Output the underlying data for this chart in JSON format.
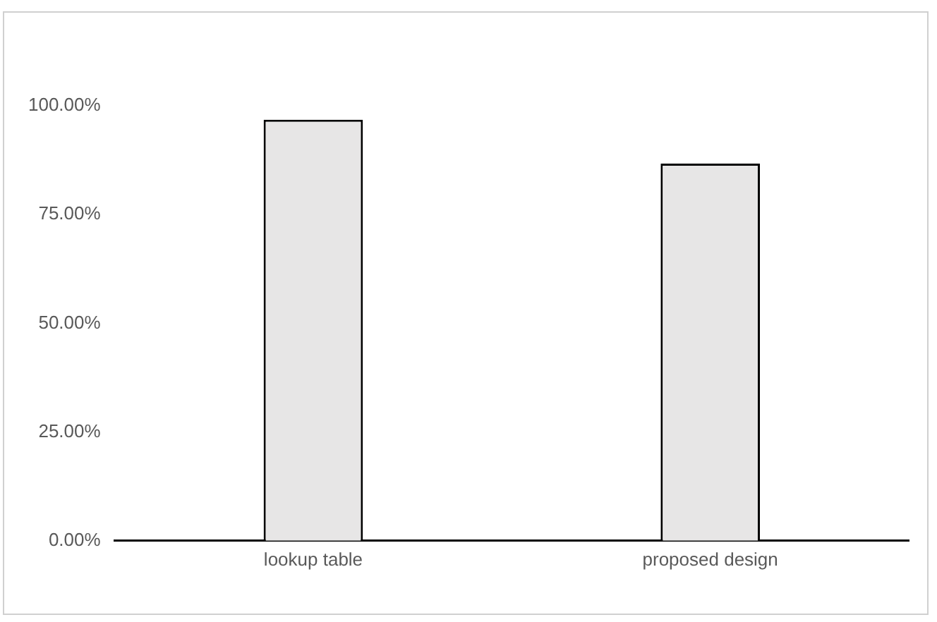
{
  "chart_data": {
    "type": "bar",
    "categories": [
      "lookup table",
      "proposed design"
    ],
    "values": [
      96.8,
      86.7
    ],
    "color": "#e7e6e6",
    "ylim": [
      0,
      100
    ],
    "yticks": [
      {
        "value": 0,
        "label": "0.00%"
      },
      {
        "value": 25,
        "label": "25.00%"
      },
      {
        "value": 50,
        "label": "50.00%"
      },
      {
        "value": 75,
        "label": "75.00%"
      },
      {
        "value": 100,
        "label": "100.00%"
      }
    ],
    "grid": false,
    "legend": false
  }
}
